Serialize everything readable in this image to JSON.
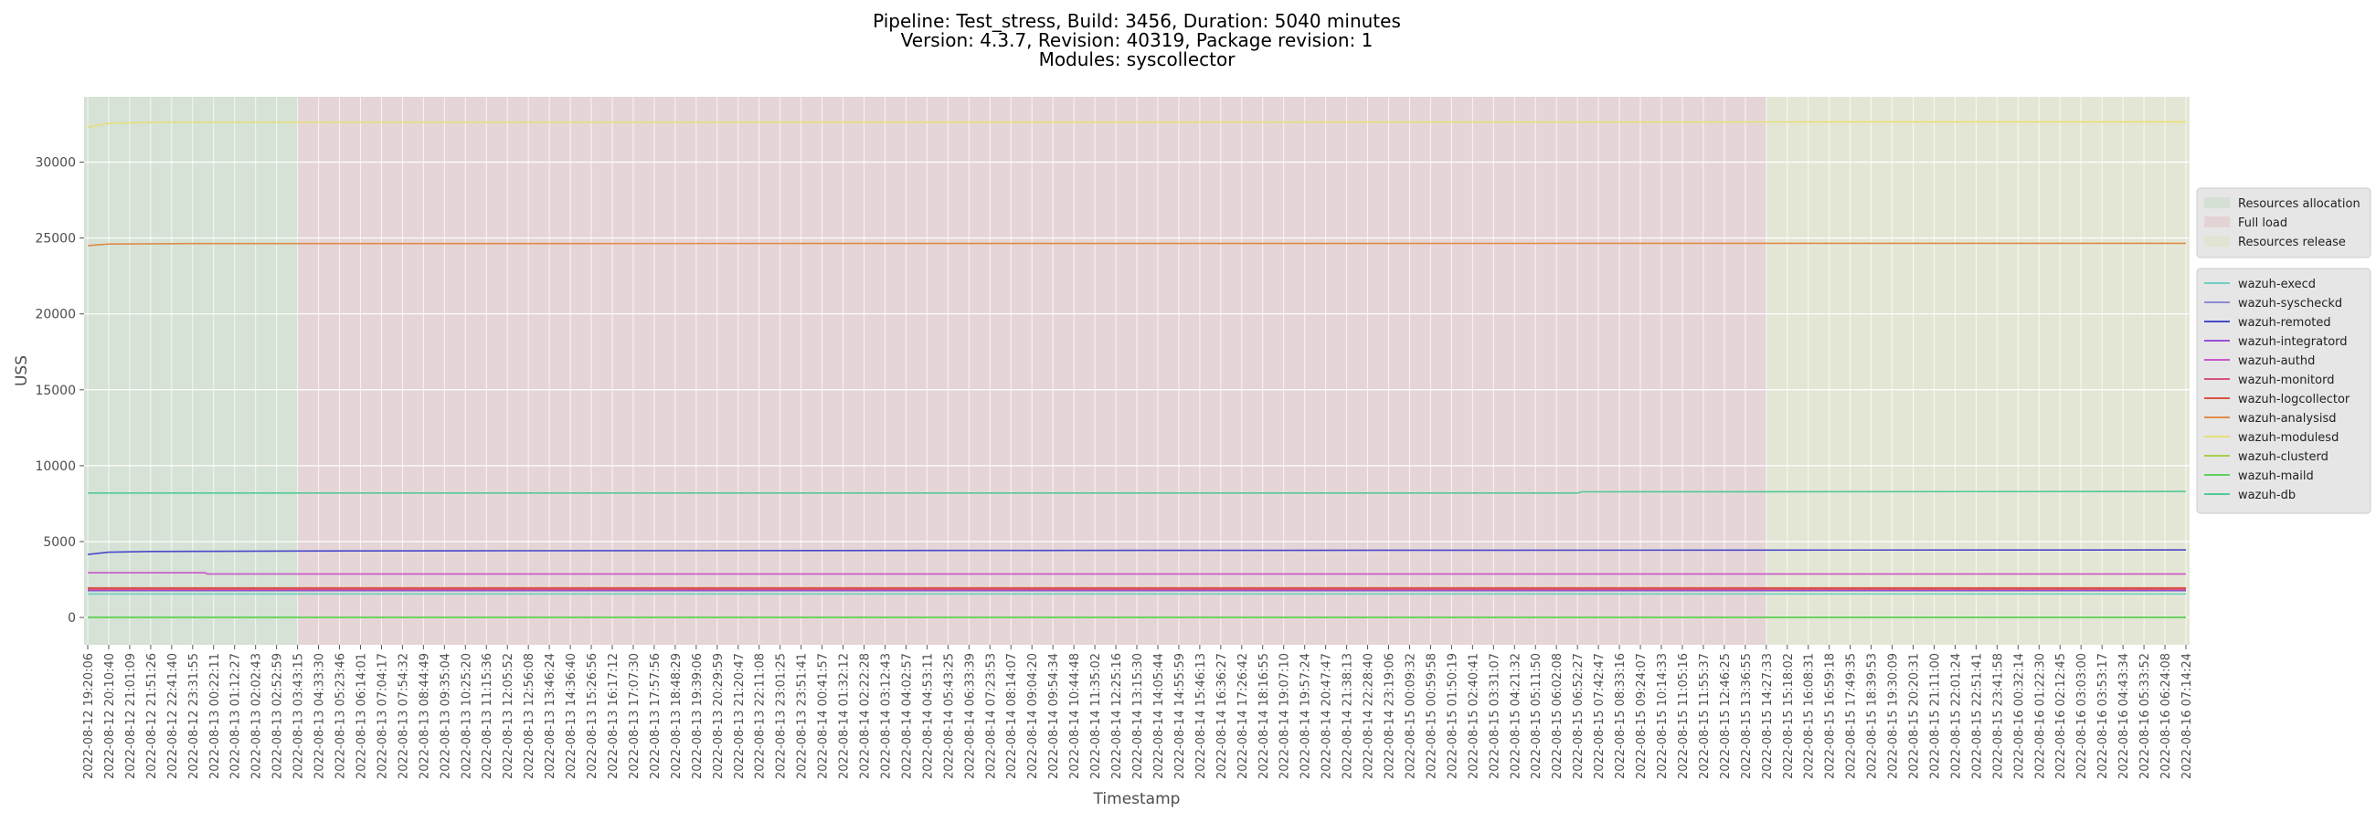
{
  "chart_data": {
    "type": "line",
    "title_lines": [
      "Pipeline: Test_stress, Build: 3456, Duration: 5040 minutes",
      "Version: 4.3.7, Revision: 40319, Package revision: 1",
      "Modules: syscollector"
    ],
    "xlabel": "Timestamp",
    "ylabel": "USS",
    "ylim": [
      -1800,
      34300
    ],
    "yticks": [
      0,
      5000,
      10000,
      15000,
      20000,
      25000,
      30000
    ],
    "grid": true,
    "legend_placement": "right",
    "x_ticks": [
      "2022-08-12 19:20:06",
      "2022-08-12 20:10:40",
      "2022-08-12 21:01:09",
      "2022-08-12 21:51:26",
      "2022-08-12 22:41:40",
      "2022-08-12 23:31:55",
      "2022-08-13 00:22:11",
      "2022-08-13 01:12:27",
      "2022-08-13 02:02:43",
      "2022-08-13 02:52:59",
      "2022-08-13 03:43:15",
      "2022-08-13 04:33:30",
      "2022-08-13 05:23:46",
      "2022-08-13 06:14:01",
      "2022-08-13 07:04:17",
      "2022-08-13 07:54:32",
      "2022-08-13 08:44:49",
      "2022-08-13 09:35:04",
      "2022-08-13 10:25:20",
      "2022-08-13 11:15:36",
      "2022-08-13 12:05:52",
      "2022-08-13 12:56:08",
      "2022-08-13 13:46:24",
      "2022-08-13 14:36:40",
      "2022-08-13 15:26:56",
      "2022-08-13 16:17:12",
      "2022-08-13 17:07:30",
      "2022-08-13 17:57:56",
      "2022-08-13 18:48:29",
      "2022-08-13 19:39:06",
      "2022-08-13 20:29:59",
      "2022-08-13 21:20:47",
      "2022-08-13 22:11:08",
      "2022-08-13 23:01:25",
      "2022-08-13 23:51:41",
      "2022-08-14 00:41:57",
      "2022-08-14 01:32:12",
      "2022-08-14 02:22:28",
      "2022-08-14 03:12:43",
      "2022-08-14 04:02:57",
      "2022-08-14 04:53:11",
      "2022-08-14 05:43:25",
      "2022-08-14 06:33:39",
      "2022-08-14 07:23:53",
      "2022-08-14 08:14:07",
      "2022-08-14 09:04:20",
      "2022-08-14 09:54:34",
      "2022-08-14 10:44:48",
      "2022-08-14 11:35:02",
      "2022-08-14 12:25:16",
      "2022-08-14 13:15:30",
      "2022-08-14 14:05:44",
      "2022-08-14 14:55:59",
      "2022-08-14 15:46:13",
      "2022-08-14 16:36:27",
      "2022-08-14 17:26:42",
      "2022-08-14 18:16:55",
      "2022-08-14 19:07:10",
      "2022-08-14 19:57:24",
      "2022-08-14 20:47:47",
      "2022-08-14 21:38:13",
      "2022-08-14 22:28:40",
      "2022-08-14 23:19:06",
      "2022-08-15 00:09:32",
      "2022-08-15 00:59:58",
      "2022-08-15 01:50:19",
      "2022-08-15 02:40:41",
      "2022-08-15 03:31:07",
      "2022-08-15 04:21:32",
      "2022-08-15 05:11:50",
      "2022-08-15 06:02:08",
      "2022-08-15 06:52:27",
      "2022-08-15 07:42:47",
      "2022-08-15 08:33:16",
      "2022-08-15 09:24:07",
      "2022-08-15 10:14:33",
      "2022-08-15 11:05:16",
      "2022-08-15 11:55:37",
      "2022-08-15 12:46:25",
      "2022-08-15 13:36:55",
      "2022-08-15 14:27:33",
      "2022-08-15 15:18:02",
      "2022-08-15 16:08:31",
      "2022-08-15 16:59:18",
      "2022-08-15 17:49:35",
      "2022-08-15 18:39:53",
      "2022-08-15 19:30:09",
      "2022-08-15 20:20:31",
      "2022-08-15 21:11:00",
      "2022-08-15 22:01:24",
      "2022-08-15 22:51:41",
      "2022-08-15 23:41:58",
      "2022-08-16 00:32:14",
      "2022-08-16 01:22:30",
      "2022-08-16 02:12:45",
      "2022-08-16 03:03:00",
      "2022-08-16 03:53:17",
      "2022-08-16 04:43:34",
      "2022-08-16 05:33:52",
      "2022-08-16 06:24:08",
      "2022-08-16 07:14:24"
    ],
    "phases": [
      {
        "name": "Resources allocation",
        "start_index": 0,
        "end_index": 10,
        "color": "#c6dcc6"
      },
      {
        "name": "Full load",
        "start_index": 10,
        "end_index": 80,
        "color": "#e3c6c9"
      },
      {
        "name": "Resources release",
        "start_index": 80,
        "end_index": 100,
        "color": "#e0e2c6"
      }
    ],
    "series": [
      {
        "name": "wazuh-execd",
        "color": "#6fd0c2",
        "points": [
          [
            0,
            1550
          ],
          [
            100,
            1550
          ]
        ]
      },
      {
        "name": "wazuh-syscheckd",
        "color": "#8c8cd6",
        "points": [
          [
            0,
            1750
          ],
          [
            100,
            1750
          ]
        ]
      },
      {
        "name": "wazuh-remoted",
        "color": "#4949c9",
        "points": [
          [
            0,
            4150
          ],
          [
            1,
            4300
          ],
          [
            3,
            4350
          ],
          [
            10,
            4380
          ],
          [
            20,
            4400
          ],
          [
            50,
            4420
          ],
          [
            100,
            4450
          ]
        ]
      },
      {
        "name": "wazuh-integratord",
        "color": "#9a4fd6",
        "points": [
          [
            0,
            1800
          ],
          [
            100,
            1800
          ]
        ]
      },
      {
        "name": "wazuh-authd",
        "color": "#c957c9",
        "points": [
          [
            0,
            2950
          ],
          [
            5.6,
            2950
          ],
          [
            5.7,
            2870
          ],
          [
            100,
            2870
          ]
        ]
      },
      {
        "name": "wazuh-monitord",
        "color": "#d6527a",
        "points": [
          [
            0,
            1850
          ],
          [
            100,
            1850
          ]
        ]
      },
      {
        "name": "wazuh-logcollector",
        "color": "#d9533f",
        "points": [
          [
            0,
            1950
          ],
          [
            100,
            1950
          ]
        ]
      },
      {
        "name": "wazuh-analysisd",
        "color": "#e08c4a",
        "points": [
          [
            0,
            24500
          ],
          [
            1,
            24600
          ],
          [
            5,
            24630
          ],
          [
            100,
            24650
          ]
        ]
      },
      {
        "name": "wazuh-modulesd",
        "color": "#e6df7a",
        "points": [
          [
            0,
            32300
          ],
          [
            1,
            32550
          ],
          [
            3,
            32620
          ],
          [
            100,
            32650
          ]
        ]
      },
      {
        "name": "wazuh-clusterd",
        "color": "#a5d04a",
        "points": [
          [
            0,
            0
          ],
          [
            100,
            0
          ]
        ]
      },
      {
        "name": "wazuh-maild",
        "color": "#5ed05e",
        "points": [
          [
            0,
            20
          ],
          [
            100,
            20
          ]
        ]
      },
      {
        "name": "wazuh-db",
        "color": "#52c998",
        "points": [
          [
            0,
            8200
          ],
          [
            71,
            8200
          ],
          [
            71.2,
            8280
          ],
          [
            100,
            8300
          ]
        ]
      }
    ]
  }
}
